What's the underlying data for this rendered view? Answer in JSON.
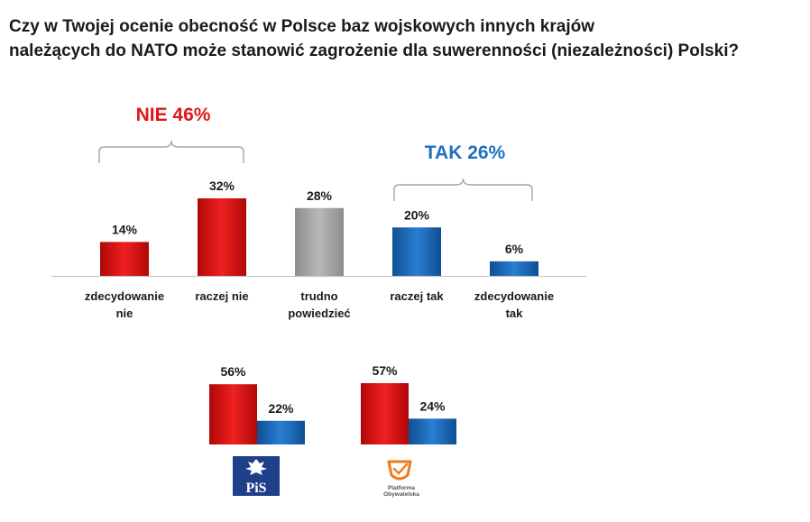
{
  "chart_data": [
    {
      "type": "bar",
      "title": "Czy w Twojej ocenie obecność w Polsce baz wojskowych innych krajów należących do NATO może stanowić zagrożenie dla suwerenności (niezależności) Polski?",
      "title_lines": [
        "Czy w Twojej ocenie obecność w Polsce baz wojskowych innych krajów",
        "należących do NATO może stanowić zagrożenie dla suwerenności (niezależności) Polski?"
      ],
      "unit": "%",
      "ylim": [
        0,
        32
      ],
      "categories": [
        [
          "zdecydowanie",
          "nie"
        ],
        [
          "raczej nie"
        ],
        [
          "trudno",
          "powiedzieć"
        ],
        [
          "raczej tak"
        ],
        [
          "zdecydowanie",
          "tak"
        ]
      ],
      "values": [
        14,
        32,
        28,
        20,
        6
      ],
      "value_labels": [
        "14%",
        "32%",
        "28%",
        "20%",
        "6%"
      ],
      "colors": [
        "#e01818",
        "#e01818",
        "#a6a6a6",
        "#1f6fc0",
        "#1f6fc0"
      ],
      "groups": [
        {
          "label": "NIE 46%",
          "color": "#e01818"
        },
        {
          "label": "TAK 26%",
          "color": "#1f6fc0"
        }
      ]
    },
    {
      "type": "bar",
      "ylim": [
        0,
        57
      ],
      "party_groups": [
        {
          "logo": "pis-logo",
          "logo_text": "PiS",
          "values": [
            56,
            22
          ],
          "value_labels": [
            "56%",
            "22%"
          ]
        },
        {
          "logo": "platforma-obywatelska-logo",
          "logo_text": "Platforma Obywatelska",
          "values": [
            57,
            24
          ],
          "value_labels": [
            "57%",
            "24%"
          ]
        }
      ],
      "series_colors": [
        "#e01818",
        "#1f6fc0"
      ]
    }
  ]
}
